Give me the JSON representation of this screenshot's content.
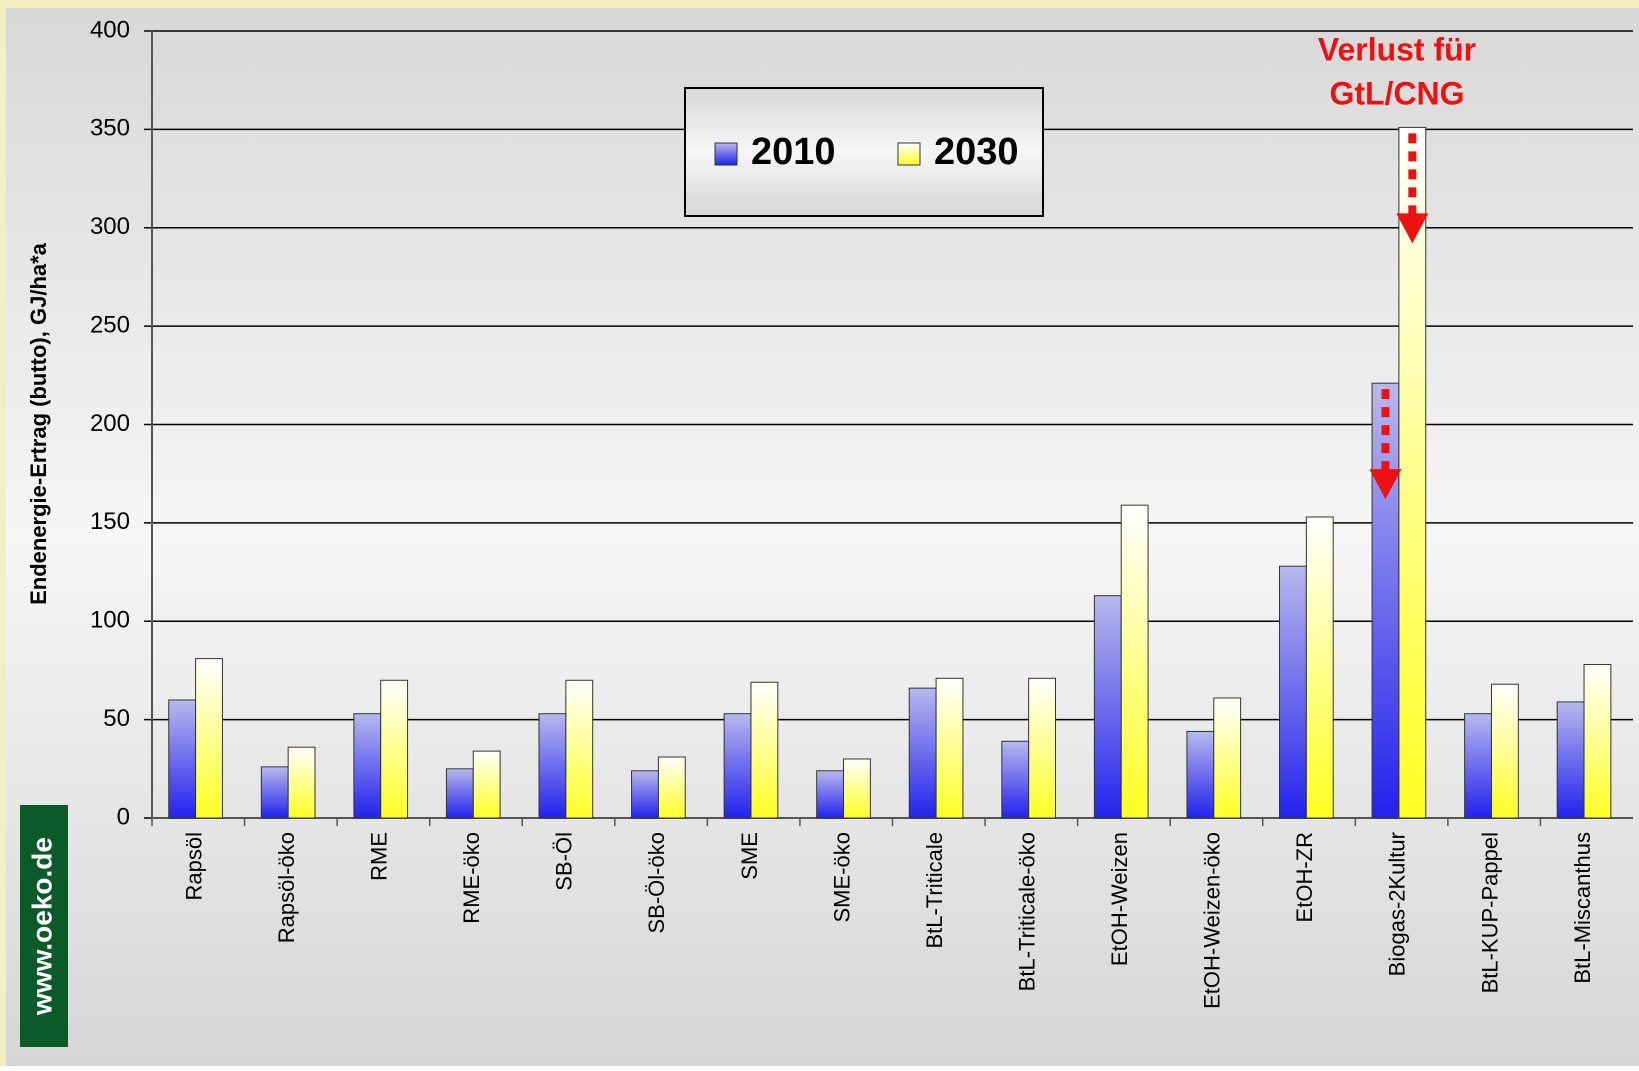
{
  "chart_data": {
    "type": "bar",
    "y_axis_label": "Endenergie-Ertrag (butto), GJ/ha*a",
    "annotation": [
      "Verlust für",
      "GtL/CNG"
    ],
    "watermark": "www.oeko.de",
    "categories": [
      "Rapsöl",
      "Rapsöl-öko",
      "RME",
      "RME-öko",
      "SB-Öl",
      "SB-Öl-öko",
      "SME",
      "SME-öko",
      "BtL-Triticale",
      "BtL-Triticale-öko",
      "EtOH-Weizen",
      "EtOH-Weizen-öko",
      "EtOH-ZR",
      "Biogas-2Kultur",
      "BtL-KUP-Pappel",
      "BtL-Miscanthus"
    ],
    "series": [
      {
        "name": "2010",
        "color": "#2222ee",
        "values": [
          60,
          26,
          53,
          25,
          53,
          24,
          53,
          24,
          66,
          39,
          113,
          44,
          128,
          221,
          53,
          59
        ]
      },
      {
        "name": "2030",
        "color": "#ffff22",
        "values": [
          81,
          36,
          70,
          34,
          70,
          31,
          69,
          30,
          71,
          71,
          159,
          61,
          153,
          351,
          68,
          78
        ]
      }
    ],
    "ylim": [
      0,
      400
    ],
    "yticks": [
      0,
      50,
      100,
      150,
      200,
      250,
      300,
      350,
      400
    ],
    "grid": true,
    "legend": "top"
  }
}
